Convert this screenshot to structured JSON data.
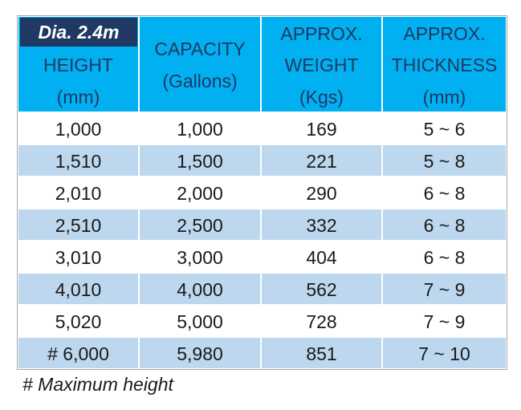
{
  "table": {
    "label": "Dia. 2.4m",
    "headers": [
      [
        "HEIGHT",
        "(mm)"
      ],
      [
        "CAPACITY",
        "(Gallons)"
      ],
      [
        "APPROX.",
        "WEIGHT",
        "(Kgs)"
      ],
      [
        "APPROX.",
        "THICKNESS",
        "(mm)"
      ]
    ],
    "rows": [
      [
        "1,000",
        "1,000",
        "169",
        "5 ~ 6"
      ],
      [
        "1,510",
        "1,500",
        "221",
        "5 ~ 8"
      ],
      [
        "2,010",
        "2,000",
        "290",
        "6 ~ 8"
      ],
      [
        "2,510",
        "2,500",
        "332",
        "6 ~ 8"
      ],
      [
        "3,010",
        "3,000",
        "404",
        "6 ~ 8"
      ],
      [
        "4,010",
        "4,000",
        "562",
        "7 ~ 9"
      ],
      [
        "5,020",
        "5,000",
        "728",
        "7 ~ 9"
      ],
      [
        "# 6,000",
        "5,980",
        "851",
        "7 ~ 10"
      ]
    ],
    "footnote": "# Maximum height"
  }
}
